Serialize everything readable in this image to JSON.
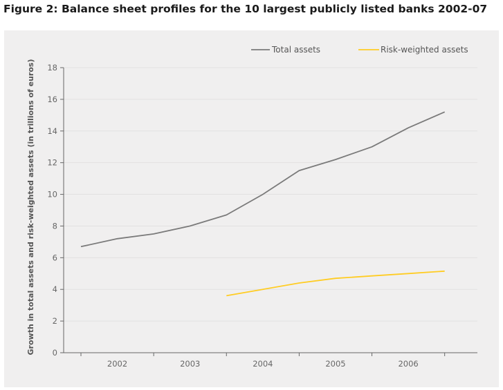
{
  "title": "Figure 2: Balance sheet profiles for the 10 largest publicly listed banks 2002-07",
  "colors": {
    "total_assets": "#7a7a7a",
    "risk_weighted_assets": "#ffcc22",
    "panel_background": "#f0efef",
    "axis": "#666666"
  },
  "chart_data": {
    "type": "line",
    "title": "Figure 2: Balance sheet profiles for the 10 largest publicly listed banks 2002-07",
    "ylabel": "Growth in total assets and risk-weighted assets (in trillions of euros)",
    "xlabel": "",
    "categories": [
      "2002",
      "2003",
      "2004",
      "2005",
      "2006"
    ],
    "ylim": [
      0,
      18
    ],
    "yticks": [
      0,
      2,
      4,
      6,
      8,
      10,
      12,
      14,
      16,
      18
    ],
    "grid": "horizontal",
    "legend_position": "top-right",
    "series": [
      {
        "name": "Total assets",
        "color": "#7a7a7a",
        "x": [
          2001.5,
          2002.0,
          2002.5,
          2003.0,
          2003.5,
          2004.0,
          2004.5,
          2005.0,
          2005.5,
          2006.0,
          2006.5
        ],
        "values": [
          6.7,
          7.2,
          7.5,
          8.0,
          8.7,
          10.0,
          11.5,
          12.2,
          13.0,
          14.2,
          15.2
        ]
      },
      {
        "name": "Risk-weighted assets",
        "color": "#ffcc22",
        "x": [
          2003.5,
          2004.0,
          2004.5,
          2005.0,
          2005.5,
          2006.0,
          2006.5
        ],
        "values": [
          3.6,
          4.0,
          4.4,
          4.7,
          4.85,
          5.0,
          5.15
        ]
      }
    ]
  }
}
